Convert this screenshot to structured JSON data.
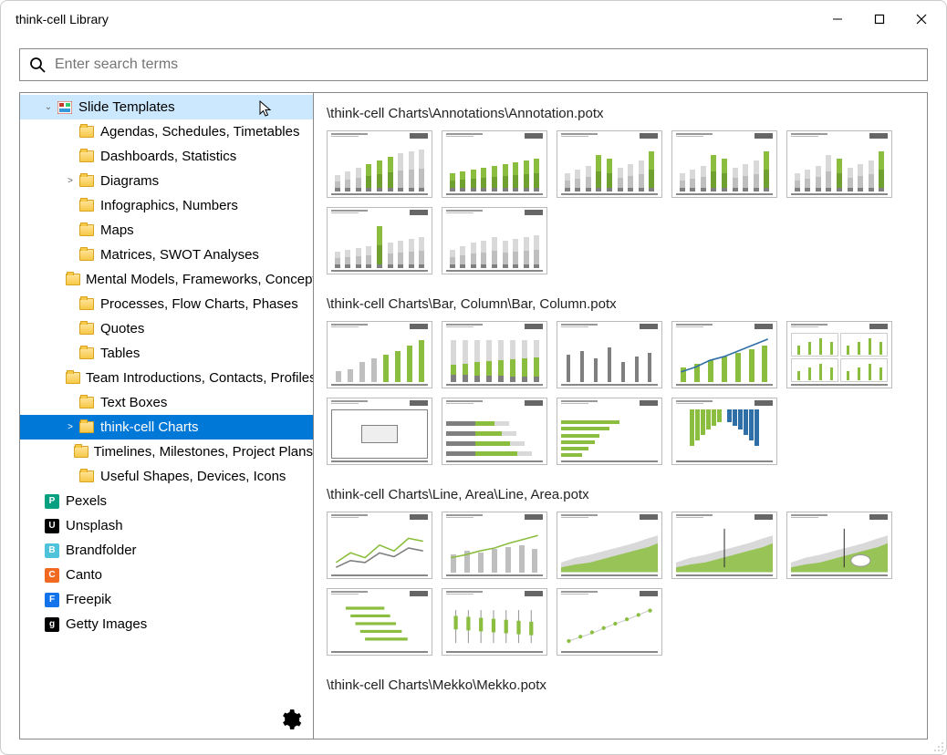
{
  "window": {
    "title": "think-cell Library"
  },
  "search": {
    "placeholder": "Enter search terms"
  },
  "tree": {
    "root_label": "Slide Templates",
    "items": [
      {
        "label": "Agendas, Schedules, Timetables",
        "icon": "folder",
        "depth": 2
      },
      {
        "label": "Dashboards, Statistics",
        "icon": "folder",
        "depth": 2
      },
      {
        "label": "Diagrams",
        "icon": "folder",
        "depth": 2,
        "expandable": true
      },
      {
        "label": "Infographics, Numbers",
        "icon": "folder",
        "depth": 2
      },
      {
        "label": "Maps",
        "icon": "folder",
        "depth": 2
      },
      {
        "label": "Matrices, SWOT Analyses",
        "icon": "folder",
        "depth": 2
      },
      {
        "label": "Mental Models, Frameworks, Concepts",
        "icon": "folder",
        "depth": 2
      },
      {
        "label": "Processes, Flow Charts, Phases",
        "icon": "folder",
        "depth": 2
      },
      {
        "label": "Quotes",
        "icon": "folder",
        "depth": 2
      },
      {
        "label": "Tables",
        "icon": "folder",
        "depth": 2
      },
      {
        "label": "Team Introductions, Contacts, Profiles",
        "icon": "folder",
        "depth": 2
      },
      {
        "label": "Text Boxes",
        "icon": "folder",
        "depth": 2
      },
      {
        "label": "think-cell Charts",
        "icon": "folder",
        "depth": 2,
        "expandable": true,
        "selected": true
      },
      {
        "label": "Timelines, Milestones, Project Plans",
        "icon": "folder",
        "depth": 2
      },
      {
        "label": "Useful Shapes, Devices, Icons",
        "icon": "folder",
        "depth": 2
      },
      {
        "label": "Pexels",
        "icon": "ext",
        "color": "#07a081",
        "glyph": "P",
        "depth": 1
      },
      {
        "label": "Unsplash",
        "icon": "ext",
        "color": "#000000",
        "glyph": "U",
        "depth": 1
      },
      {
        "label": "Brandfolder",
        "icon": "ext",
        "color": "#4fc3d9",
        "glyph": "B",
        "depth": 1
      },
      {
        "label": "Canto",
        "icon": "ext",
        "color": "#f26a21",
        "glyph": "C",
        "depth": 1
      },
      {
        "label": "Freepik",
        "icon": "ext",
        "color": "#1273eb",
        "glyph": "F",
        "depth": 1
      },
      {
        "label": "Getty Images",
        "icon": "ext",
        "color": "#000000",
        "glyph": "g",
        "depth": 1
      }
    ]
  },
  "palette": {
    "green": "#8bbe3f",
    "grey": "#bfbfbf",
    "dgrey": "#7f7f7f",
    "lgrey": "#d9d9d9",
    "blue": "#2f6fa7"
  },
  "sections": [
    {
      "title": "\\think-cell Charts\\Annotations\\Annotation.potx",
      "thumbs": [
        {
          "type": "stackedbars",
          "highlight": [
            3,
            4,
            5
          ],
          "heights": [
            18,
            22,
            26,
            30,
            34,
            38,
            42,
            44,
            46
          ]
        },
        {
          "type": "stackedbars",
          "highlight": [
            0,
            1,
            2,
            3,
            4,
            5,
            6,
            7,
            8
          ],
          "heights": [
            20,
            22,
            24,
            26,
            28,
            30,
            32,
            34,
            36
          ]
        },
        {
          "type": "stackedbars",
          "highlight": [
            3,
            4,
            8
          ],
          "heights": [
            20,
            24,
            28,
            40,
            36,
            26,
            30,
            34,
            44
          ],
          "arrow": true
        },
        {
          "type": "stackedbars",
          "highlight": [
            3,
            4,
            8
          ],
          "heights": [
            20,
            24,
            28,
            40,
            36,
            26,
            30,
            34,
            44
          ],
          "arrow": true
        },
        {
          "type": "stackedbars",
          "highlight": [
            4,
            8
          ],
          "heights": [
            20,
            24,
            28,
            40,
            36,
            26,
            30,
            34,
            44
          ]
        },
        {
          "type": "stackedbars",
          "highlight": [
            4
          ],
          "heights": [
            18,
            20,
            22,
            24,
            46,
            28,
            30,
            32,
            34
          ]
        },
        {
          "type": "stackedbars",
          "highlight": [],
          "heights": [
            20,
            24,
            28,
            30,
            34,
            30,
            32,
            34,
            36
          ],
          "grey_only": true
        }
      ]
    },
    {
      "title": "\\think-cell Charts\\Bar, Column\\Bar, Column.potx",
      "thumbs": [
        {
          "type": "vbars_growing"
        },
        {
          "type": "stacked100"
        },
        {
          "type": "vbars_sparse"
        },
        {
          "type": "vbars_line"
        },
        {
          "type": "multi_panel"
        },
        {
          "type": "framed_box"
        },
        {
          "type": "hstacked"
        },
        {
          "type": "hbars_green"
        },
        {
          "type": "butterfly"
        }
      ]
    },
    {
      "title": "\\think-cell Charts\\Line, Area\\Line, Area.potx",
      "thumbs": [
        {
          "type": "lines2"
        },
        {
          "type": "bar_line"
        },
        {
          "type": "area_light"
        },
        {
          "type": "area_marker"
        },
        {
          "type": "area_callout"
        },
        {
          "type": "football"
        },
        {
          "type": "candle"
        },
        {
          "type": "dot_trend"
        }
      ]
    },
    {
      "title": "\\think-cell Charts\\Mekko\\Mekko.potx",
      "thumbs": []
    }
  ]
}
